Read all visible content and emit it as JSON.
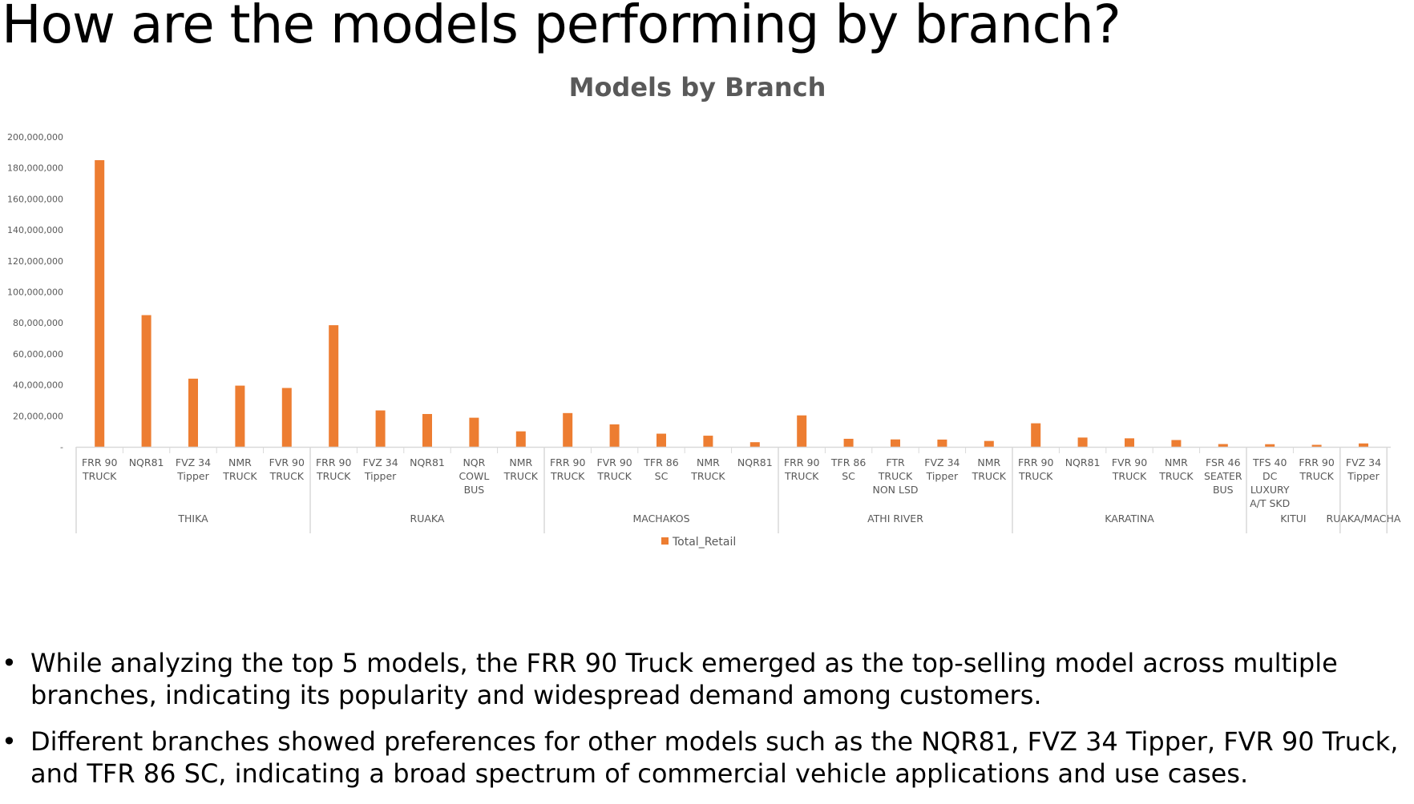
{
  "slide": {
    "title": "How are the models performing by branch?",
    "bullets": [
      "While analyzing the top 5 models, the FRR 90 Truck emerged as the top-selling model across multiple branches, indicating its popularity and widespread demand among customers.",
      "Different branches showed preferences for other models such as the NQR81, FVZ 34 Tipper, FVR 90 Truck, and TFR 86 SC, indicating a broad spectrum of commercial vehicle applications and use cases."
    ]
  },
  "chart_data": {
    "type": "bar",
    "title": "Models by Branch",
    "xlabel": "",
    "ylabel": "",
    "ylim": [
      0,
      200000000
    ],
    "yticks": [
      0,
      20000000,
      40000000,
      60000000,
      80000000,
      100000000,
      120000000,
      140000000,
      160000000,
      180000000,
      200000000
    ],
    "ytick_labels": [
      "-",
      "20,000,000",
      "40,000,000",
      "60,000,000",
      "80,000,000",
      "100,000,000",
      "120,000,000",
      "140,000,000",
      "160,000,000",
      "180,000,000",
      "200,000,000"
    ],
    "grid": false,
    "legend": {
      "position": "bottom",
      "entries": [
        "Total_Retail"
      ]
    },
    "bar_color": "#ED7D31",
    "groups": [
      {
        "name": "THIKA",
        "items": [
          {
            "label": [
              "FRR 90",
              "TRUCK"
            ],
            "value": 185000000
          },
          {
            "label": [
              "NQR81"
            ],
            "value": 85000000
          },
          {
            "label": [
              "FVZ 34",
              "Tipper"
            ],
            "value": 44000000
          },
          {
            "label": [
              "NMR",
              "TRUCK"
            ],
            "value": 39500000
          },
          {
            "label": [
              "FVR 90",
              "TRUCK"
            ],
            "value": 38000000
          }
        ]
      },
      {
        "name": "RUAKA",
        "items": [
          {
            "label": [
              "FRR 90",
              "TRUCK"
            ],
            "value": 78500000
          },
          {
            "label": [
              "FVZ 34",
              "Tipper"
            ],
            "value": 23500000
          },
          {
            "label": [
              "NQR81"
            ],
            "value": 21200000
          },
          {
            "label": [
              "NQR",
              "COWL",
              "BUS"
            ],
            "value": 18800000
          },
          {
            "label": [
              "NMR",
              "TRUCK"
            ],
            "value": 10000000
          }
        ]
      },
      {
        "name": "MACHAKOS",
        "items": [
          {
            "label": [
              "FRR 90",
              "TRUCK"
            ],
            "value": 21800000
          },
          {
            "label": [
              "FVR 90",
              "TRUCK"
            ],
            "value": 14500000
          },
          {
            "label": [
              "TFR 86",
              "SC"
            ],
            "value": 8500000
          },
          {
            "label": [
              "NMR",
              "TRUCK"
            ],
            "value": 7200000
          },
          {
            "label": [
              "NQR81"
            ],
            "value": 3000000
          }
        ]
      },
      {
        "name": "ATHI RIVER",
        "items": [
          {
            "label": [
              "FRR 90",
              "TRUCK"
            ],
            "value": 20300000
          },
          {
            "label": [
              "TFR 86",
              "SC"
            ],
            "value": 5200000
          },
          {
            "label": [
              "FTR",
              "TRUCK",
              "NON LSD"
            ],
            "value": 4800000
          },
          {
            "label": [
              "FVZ 34",
              "Tipper"
            ],
            "value": 4700000
          },
          {
            "label": [
              "NMR",
              "TRUCK"
            ],
            "value": 3800000
          }
        ]
      },
      {
        "name": "KARATINA",
        "items": [
          {
            "label": [
              "FRR 90",
              "TRUCK"
            ],
            "value": 15200000
          },
          {
            "label": [
              "NQR81"
            ],
            "value": 6000000
          },
          {
            "label": [
              "FVR 90",
              "TRUCK"
            ],
            "value": 5500000
          },
          {
            "label": [
              "NMR",
              "TRUCK"
            ],
            "value": 4400000
          },
          {
            "label": [
              "FSR 46",
              "SEATER",
              "BUS"
            ],
            "value": 1800000
          }
        ]
      },
      {
        "name": "KITUI",
        "items": [
          {
            "label": [
              "TFS 40",
              "DC",
              "LUXURY",
              "A/T SKD"
            ],
            "value": 1700000
          },
          {
            "label": [
              "FRR 90",
              "TRUCK"
            ],
            "value": 1300000
          }
        ]
      },
      {
        "name": "RUAKA/MACHA",
        "items": [
          {
            "label": [
              "FVZ 34",
              "Tipper"
            ],
            "value": 2200000
          }
        ]
      }
    ]
  }
}
